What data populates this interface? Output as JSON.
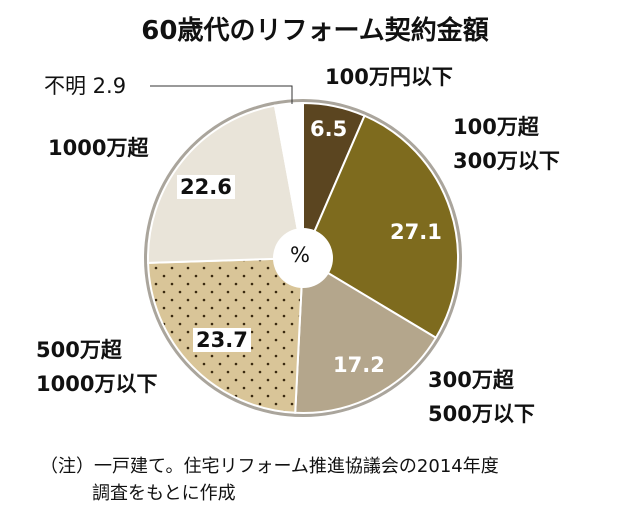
{
  "chart_data": {
    "type": "pie",
    "title": "60歳代のリフォーム契約金額",
    "unit_label": "%",
    "slices": [
      {
        "label": "100万円以下",
        "value": 6.5,
        "color": "#5b4520"
      },
      {
        "label": "100万超\n300万以下",
        "value": 27.1,
        "color": "#7e6b1e"
      },
      {
        "label": "300万超\n500万以下",
        "value": 17.2,
        "color": "#b4a68c"
      },
      {
        "label": "500万超\n1000万以下",
        "value": 23.7,
        "color": "#d9c598",
        "pattern": "dots"
      },
      {
        "label": "1000万超",
        "value": 22.6,
        "color": "#e9e4d9"
      },
      {
        "label": "不明",
        "value": 2.9,
        "color": "#ffffff"
      }
    ],
    "labels": {
      "s0": "100万円以下",
      "s1a": "100万超",
      "s1b": "300万以下",
      "s2a": "300万超",
      "s2b": "500万以下",
      "s3a": "500万超",
      "s3b": "1000万以下",
      "s4": "1000万超",
      "s5": "不明 2.9"
    },
    "value_labels": {
      "s0": "6.5",
      "s1": "27.1",
      "s2": "17.2",
      "s3": "23.7",
      "s4": "22.6"
    },
    "note_line1": "（注）一戸建て。住宅リフォーム推進協議会の2014年度",
    "note_line2": "調査をもとに作成",
    "ring_color": "#aaa59c"
  }
}
